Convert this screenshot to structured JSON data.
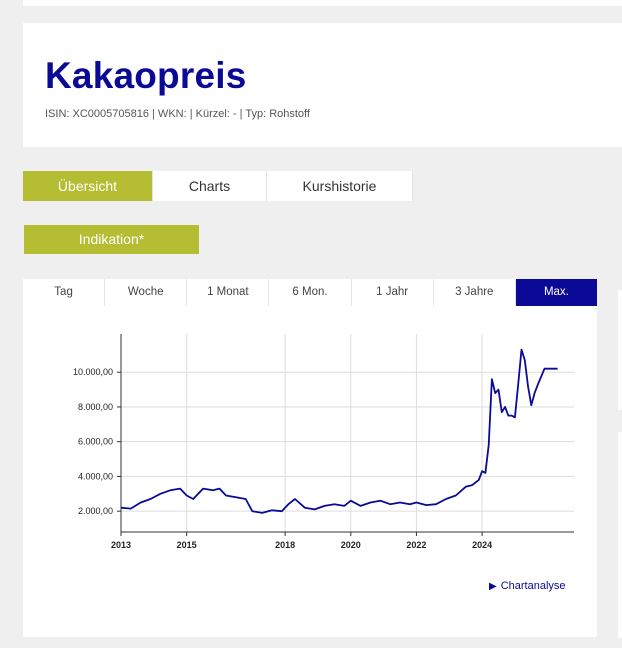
{
  "header": {
    "title": "Kakaopreis",
    "meta": "ISIN: XC0005705816 | WKN: | Kürzel: - | Typ: Rohstoff"
  },
  "tabs": [
    {
      "label": "Übersicht",
      "active": true
    },
    {
      "label": "Charts",
      "active": false
    },
    {
      "label": "Kurshistorie",
      "active": false
    }
  ],
  "indication_button": "Indikation*",
  "ranges": [
    {
      "label": "Tag",
      "active": false
    },
    {
      "label": "Woche",
      "active": false
    },
    {
      "label": "1 Monat",
      "active": false
    },
    {
      "label": "6 Mon.",
      "active": false
    },
    {
      "label": "1 Jahr",
      "active": false
    },
    {
      "label": "3 Jahre",
      "active": false
    },
    {
      "label": "Max.",
      "active": true
    }
  ],
  "chart_analysis_link": "Chartanalyse",
  "colors": {
    "accent": "#b5bd33",
    "brand": "#0a0a96",
    "line": "#0a0a96"
  },
  "chart_data": {
    "type": "line",
    "title": "",
    "xlabel": "",
    "ylabel": "",
    "x_ticks": [
      "2013",
      "2015",
      "2018",
      "2020",
      "2022",
      "2024"
    ],
    "y_ticks": [
      "2.000,00",
      "4.000,00",
      "6.000,00",
      "8.000,00",
      "10.000,00"
    ],
    "ylim": [
      800,
      12200
    ],
    "xlim": [
      2013.0,
      2026.8
    ],
    "grid": true,
    "series": [
      {
        "x": [
          2013.0,
          2013.3,
          2013.6,
          2013.9,
          2014.2,
          2014.5,
          2014.8,
          2015.0,
          2015.2,
          2015.5,
          2015.8,
          2016.0,
          2016.2,
          2016.5,
          2016.8,
          2017.0,
          2017.3,
          2017.6,
          2017.9,
          2018.1,
          2018.3,
          2018.6,
          2018.9,
          2019.2,
          2019.5,
          2019.8,
          2020.0,
          2020.3,
          2020.6,
          2020.9,
          2021.2,
          2021.5,
          2021.8,
          2022.0,
          2022.3,
          2022.6,
          2022.9,
          2023.2,
          2023.5,
          2023.7,
          2023.9,
          2024.0,
          2024.1,
          2024.2,
          2024.3,
          2024.4,
          2024.5,
          2024.6,
          2024.7,
          2024.8,
          2024.9,
          2025.0,
          2025.1,
          2025.2,
          2025.3,
          2025.4,
          2025.5,
          2025.6,
          2025.7,
          2025.9,
          2026.1,
          2026.3
        ],
        "y": [
          2200,
          2150,
          2500,
          2700,
          3000,
          3200,
          3300,
          2900,
          2700,
          3300,
          3200,
          3300,
          2900,
          2800,
          2700,
          2000,
          1900,
          2050,
          2000,
          2400,
          2700,
          2200,
          2100,
          2300,
          2400,
          2300,
          2600,
          2300,
          2500,
          2600,
          2400,
          2500,
          2400,
          2500,
          2350,
          2400,
          2700,
          2900,
          3400,
          3500,
          3800,
          4300,
          4200,
          5800,
          9600,
          8800,
          9000,
          7700,
          8000,
          7500,
          7500,
          7400,
          9300,
          11300,
          10700,
          9200,
          8100,
          8800,
          9300,
          10200,
          10200,
          10200
        ]
      }
    ]
  }
}
